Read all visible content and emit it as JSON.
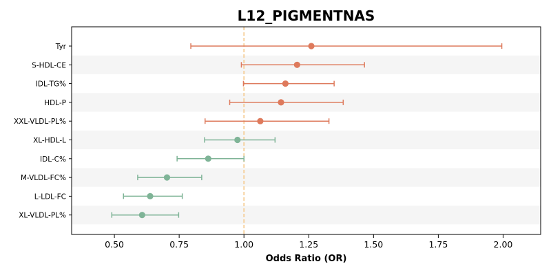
{
  "chart_data": {
    "type": "forest",
    "title": "L12_PIGMENTNAS",
    "xlabel": "Odds Ratio (OR)",
    "ylabel": "",
    "xlim": [
      0.335,
      2.145
    ],
    "xticks": [
      0.5,
      0.75,
      1.0,
      1.25,
      1.5,
      1.75,
      2.0
    ],
    "xtick_labels": [
      "0.50",
      "0.75",
      "1.00",
      "1.25",
      "1.50",
      "1.75",
      "2.00"
    ],
    "reference_line": 1.0,
    "grid": false,
    "alternating_row_shading": true,
    "colors": {
      "above_one": "#DE7A5C",
      "below_one": "#7FB497",
      "reference_line": "#F5C98A",
      "row_shade": "#F5F5F5"
    },
    "rows": [
      {
        "label": "Tyr",
        "or": 1.26,
        "lower": 0.795,
        "upper": 1.995
      },
      {
        "label": "S-HDL-CE",
        "or": 1.205,
        "lower": 0.99,
        "upper": 1.465
      },
      {
        "label": "IDL-TG%",
        "or": 1.16,
        "lower": 0.998,
        "upper": 1.348
      },
      {
        "label": "HDL-P",
        "or": 1.143,
        "lower": 0.945,
        "upper": 1.383
      },
      {
        "label": "XXL-VLDL-PL%",
        "or": 1.063,
        "lower": 0.85,
        "upper": 1.328
      },
      {
        "label": "XL-HDL-L",
        "or": 0.975,
        "lower": 0.848,
        "upper": 1.12
      },
      {
        "label": "IDL-C%",
        "or": 0.862,
        "lower": 0.742,
        "upper": 1.0
      },
      {
        "label": "M-VLDL-FC%",
        "or": 0.703,
        "lower": 0.59,
        "upper": 0.837
      },
      {
        "label": "L-LDL-FC",
        "or": 0.638,
        "lower": 0.535,
        "upper": 0.762
      },
      {
        "label": "XL-VLDL-PL%",
        "or": 0.607,
        "lower": 0.49,
        "upper": 0.748
      }
    ]
  }
}
